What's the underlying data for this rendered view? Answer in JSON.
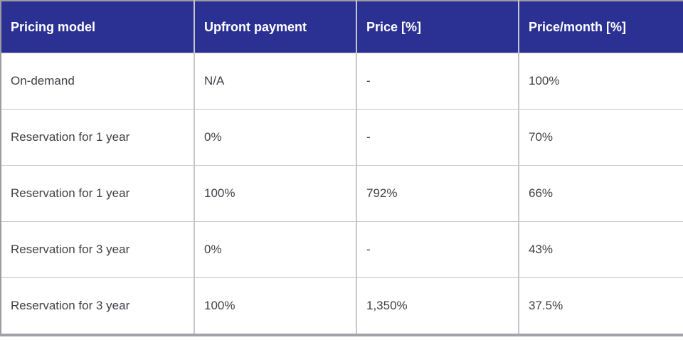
{
  "table": {
    "headers": [
      "Pricing model",
      "Upfront payment",
      "Price [%]",
      "Price/month [%]"
    ],
    "rows": [
      {
        "cells": [
          "On-demand",
          "N/A",
          "-",
          "100%"
        ]
      },
      {
        "cells": [
          "Reservation for 1 year",
          "0%",
          "-",
          "70%"
        ]
      },
      {
        "cells": [
          "Reservation for 1 year",
          "100%",
          "792%",
          "66%"
        ]
      },
      {
        "cells": [
          "Reservation for 3 year",
          "0%",
          "-",
          "43%"
        ]
      },
      {
        "cells": [
          "Reservation for 3 year",
          "100%",
          "1,350%",
          "37.5%"
        ]
      }
    ]
  },
  "colors": {
    "header_background": "#2b3192",
    "header_text": "#ffffff",
    "body_text": "#3f3f46",
    "grid_line": "#c6c6cc",
    "outer_border": "#9b9ba1"
  },
  "chart_data": {
    "type": "table",
    "columns": [
      "Pricing model",
      "Upfront payment",
      "Price [%]",
      "Price/month [%]"
    ],
    "rows": [
      [
        "On-demand",
        "N/A",
        "-",
        "100%"
      ],
      [
        "Reservation for 1 year",
        "0%",
        "-",
        "70%"
      ],
      [
        "Reservation for 1 year",
        "100%",
        "792%",
        "66%"
      ],
      [
        "Reservation for 3 year",
        "0%",
        "-",
        "43%"
      ],
      [
        "Reservation for 3 year",
        "100%",
        "1,350%",
        "37.5%"
      ]
    ],
    "title": "",
    "notes": "Pricing model comparison table: upfront payment vs total price and monthly price percentages"
  }
}
